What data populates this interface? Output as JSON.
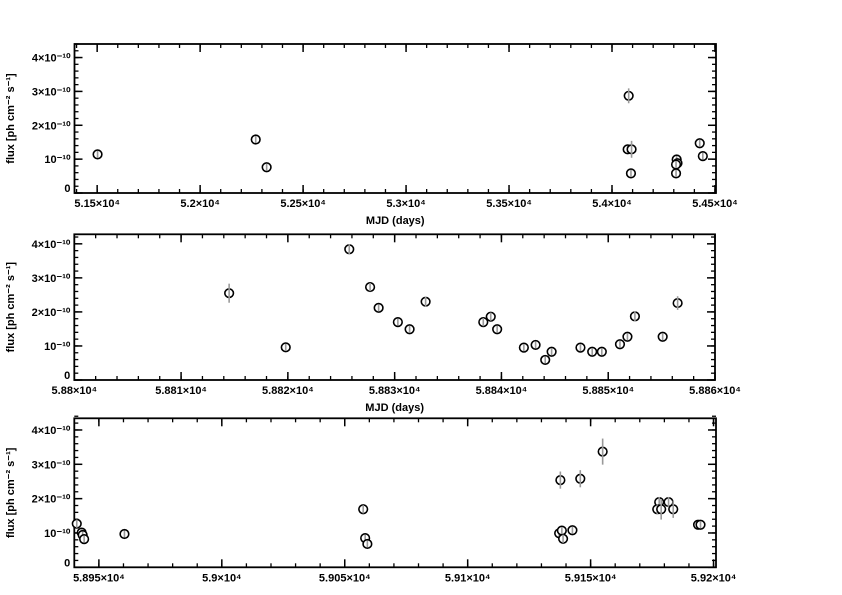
{
  "colors": {
    "axis": "#000000",
    "marker_edge": "#000000",
    "marker_fill": "#ffffff",
    "error_bar": "#999999"
  },
  "chart_data": [
    {
      "type": "scatter",
      "xlabel": "MJD (days)",
      "ylabel": "flux [ph cm⁻² s⁻¹]",
      "xlim": [
        51390,
        54505
      ],
      "ylim": [
        0,
        4.4e-10
      ],
      "grid": false,
      "xticks": [
        51500,
        52000,
        52500,
        53000,
        53500,
        54000,
        54500
      ],
      "xtick_labels": [
        "5.15×10⁴",
        "5.2×10⁴",
        "5.25×10⁴",
        "5.3×10⁴",
        "5.35×10⁴",
        "5.4×10⁴",
        "5.45×10⁴"
      ],
      "xminor_step": 100,
      "yticks": [
        0,
        1e-10,
        2e-10,
        3e-10,
        4e-10
      ],
      "ytick_labels": [
        "0",
        "10⁻¹⁰",
        "2×10⁻¹⁰",
        "3×10⁻¹⁰",
        "4×10⁻¹⁰"
      ],
      "yminor_step": 2e-11,
      "points": [
        {
          "x": 51502,
          "y": 1.14e-10,
          "err": 8e-12
        },
        {
          "x": 52270,
          "y": 1.58e-10,
          "err": 8e-12
        },
        {
          "x": 52323,
          "y": 7.6e-11,
          "err": 8e-12
        },
        {
          "x": 54081,
          "y": 2.87e-10,
          "err": 2.2e-11
        },
        {
          "x": 54076,
          "y": 1.29e-10,
          "err": 1e-11
        },
        {
          "x": 54095,
          "y": 1.29e-10,
          "err": 2.5e-11
        },
        {
          "x": 54092,
          "y": 5.8e-11,
          "err": 8e-12
        },
        {
          "x": 54314,
          "y": 9.9e-11,
          "err": 8e-12
        },
        {
          "x": 54318,
          "y": 8.8e-11,
          "err": 8e-12
        },
        {
          "x": 54311,
          "y": 8.4e-11,
          "err": 8e-12
        },
        {
          "x": 54311,
          "y": 5.8e-11,
          "err": 8e-12
        },
        {
          "x": 54426,
          "y": 1.47e-10,
          "err": 8e-12
        },
        {
          "x": 54441,
          "y": 1.09e-10,
          "err": 1e-11
        }
      ]
    },
    {
      "type": "scatter",
      "xlabel": "MJD (days)",
      "ylabel": "flux [ph cm⁻² s⁻¹]",
      "xlim": [
        58800,
        58860
      ],
      "ylim": [
        0,
        4.28e-10
      ],
      "grid": false,
      "xticks": [
        58800,
        58810,
        58820,
        58830,
        58840,
        58850,
        58860
      ],
      "xtick_labels": [
        "5.88×10⁴",
        "5.881×10⁴",
        "5.882×10⁴",
        "5.883×10⁴",
        "5.884×10⁴",
        "5.885×10⁴",
        "5.886×10⁴"
      ],
      "xminor_step": 2,
      "yticks": [
        0,
        1e-10,
        2e-10,
        3e-10,
        4e-10
      ],
      "ytick_labels": [
        "0",
        "10⁻¹⁰",
        "2×10⁻¹⁰",
        "3×10⁻¹⁰",
        "4×10⁻¹⁰"
      ],
      "yminor_step": 2e-11,
      "points": [
        {
          "x": 58814.5,
          "y": 2.55e-10,
          "err": 2.8e-11
        },
        {
          "x": 58819.8,
          "y": 9.6e-11,
          "err": 1e-11
        },
        {
          "x": 58825.75,
          "y": 3.84e-10,
          "err": 1.5e-11
        },
        {
          "x": 58827.7,
          "y": 2.73e-10,
          "err": 1.2e-11
        },
        {
          "x": 58828.5,
          "y": 2.12e-10,
          "err": 1e-11
        },
        {
          "x": 58830.3,
          "y": 1.7e-10,
          "err": 1e-11
        },
        {
          "x": 58831.4,
          "y": 1.49e-10,
          "err": 1e-11
        },
        {
          "x": 58832.9,
          "y": 2.3e-10,
          "err": 1.5e-11
        },
        {
          "x": 58838.3,
          "y": 1.7e-10,
          "err": 1.2e-11
        },
        {
          "x": 58839.0,
          "y": 1.86e-10,
          "err": 1.2e-11
        },
        {
          "x": 58839.6,
          "y": 1.49e-10,
          "err": 1e-11
        },
        {
          "x": 58842.1,
          "y": 9.5e-11,
          "err": 1e-11
        },
        {
          "x": 58843.2,
          "y": 1.03e-10,
          "err": 1e-11
        },
        {
          "x": 58844.1,
          "y": 5.9e-11,
          "err": 1e-11
        },
        {
          "x": 58844.7,
          "y": 8.3e-11,
          "err": 1e-11
        },
        {
          "x": 58847.4,
          "y": 9.5e-11,
          "err": 1e-11
        },
        {
          "x": 58848.5,
          "y": 8.3e-11,
          "err": 1e-11
        },
        {
          "x": 58849.4,
          "y": 8.3e-11,
          "err": 1e-11
        },
        {
          "x": 58851.1,
          "y": 1.05e-10,
          "err": 1e-11
        },
        {
          "x": 58851.8,
          "y": 1.27e-10,
          "err": 1e-11
        },
        {
          "x": 58852.5,
          "y": 1.87e-10,
          "err": 1.5e-11
        },
        {
          "x": 58855.1,
          "y": 1.27e-10,
          "err": 1e-11
        },
        {
          "x": 58856.5,
          "y": 2.26e-10,
          "err": 2e-11
        }
      ]
    },
    {
      "type": "scatter",
      "ylabel": "flux [ph cm⁻² s⁻¹]",
      "xlim": [
        58940,
        59201
      ],
      "ylim": [
        0,
        4.34e-10
      ],
      "grid": false,
      "xticks": [
        58950,
        59000,
        59050,
        59100,
        59150,
        59200
      ],
      "xtick_labels": [
        "5.895×10⁴",
        "5.9×10⁴",
        "5.905×10⁴",
        "5.91×10⁴",
        "5.915×10⁴",
        "5.92×10⁴"
      ],
      "xminor_step": 10,
      "yticks": [
        0,
        1e-10,
        2e-10,
        3e-10,
        4e-10
      ],
      "ytick_labels": [
        "0",
        "10⁻¹⁰",
        "2×10⁻¹⁰",
        "3×10⁻¹⁰",
        "4×10⁻¹⁰"
      ],
      "yminor_step": 2e-11,
      "points": [
        {
          "x": 58941,
          "y": 1.27e-10,
          "err": 1.2e-11
        },
        {
          "x": 58943,
          "y": 1.01e-10,
          "err": 1e-11
        },
        {
          "x": 58943.4,
          "y": 9.4e-11,
          "err": 1e-11
        },
        {
          "x": 58944,
          "y": 8.2e-11,
          "err": 1e-11
        },
        {
          "x": 58960.4,
          "y": 9.7e-11,
          "err": 1e-11
        },
        {
          "x": 59057.5,
          "y": 1.69e-10,
          "err": 1.2e-11
        },
        {
          "x": 59058.3,
          "y": 8.5e-11,
          "err": 1e-11
        },
        {
          "x": 59059.2,
          "y": 6.8e-11,
          "err": 1e-11
        },
        {
          "x": 59137.7,
          "y": 2.54e-10,
          "err": 2.5e-11
        },
        {
          "x": 59145.8,
          "y": 2.58e-10,
          "err": 2.5e-11
        },
        {
          "x": 59154.9,
          "y": 3.37e-10,
          "err": 3.8e-11
        },
        {
          "x": 59137.2,
          "y": 9.9e-11,
          "err": 1e-11
        },
        {
          "x": 59138.3,
          "y": 1.07e-10,
          "err": 1e-11
        },
        {
          "x": 59138.8,
          "y": 8.3e-11,
          "err": 1.2e-11
        },
        {
          "x": 59142.6,
          "y": 1.08e-10,
          "err": 1e-11
        },
        {
          "x": 59177.9,
          "y": 1.9e-10,
          "err": 1.5e-11
        },
        {
          "x": 59177.1,
          "y": 1.69e-10,
          "err": 1.5e-11
        },
        {
          "x": 59178.7,
          "y": 1.69e-10,
          "err": 3e-11
        },
        {
          "x": 59181.7,
          "y": 1.9e-10,
          "err": 1.5e-11
        },
        {
          "x": 59183.6,
          "y": 1.69e-10,
          "err": 2.5e-11
        },
        {
          "x": 59193.7,
          "y": 1.24e-10,
          "err": 8e-12
        },
        {
          "x": 59194.7,
          "y": 1.24e-10,
          "err": 8e-12
        }
      ]
    }
  ]
}
